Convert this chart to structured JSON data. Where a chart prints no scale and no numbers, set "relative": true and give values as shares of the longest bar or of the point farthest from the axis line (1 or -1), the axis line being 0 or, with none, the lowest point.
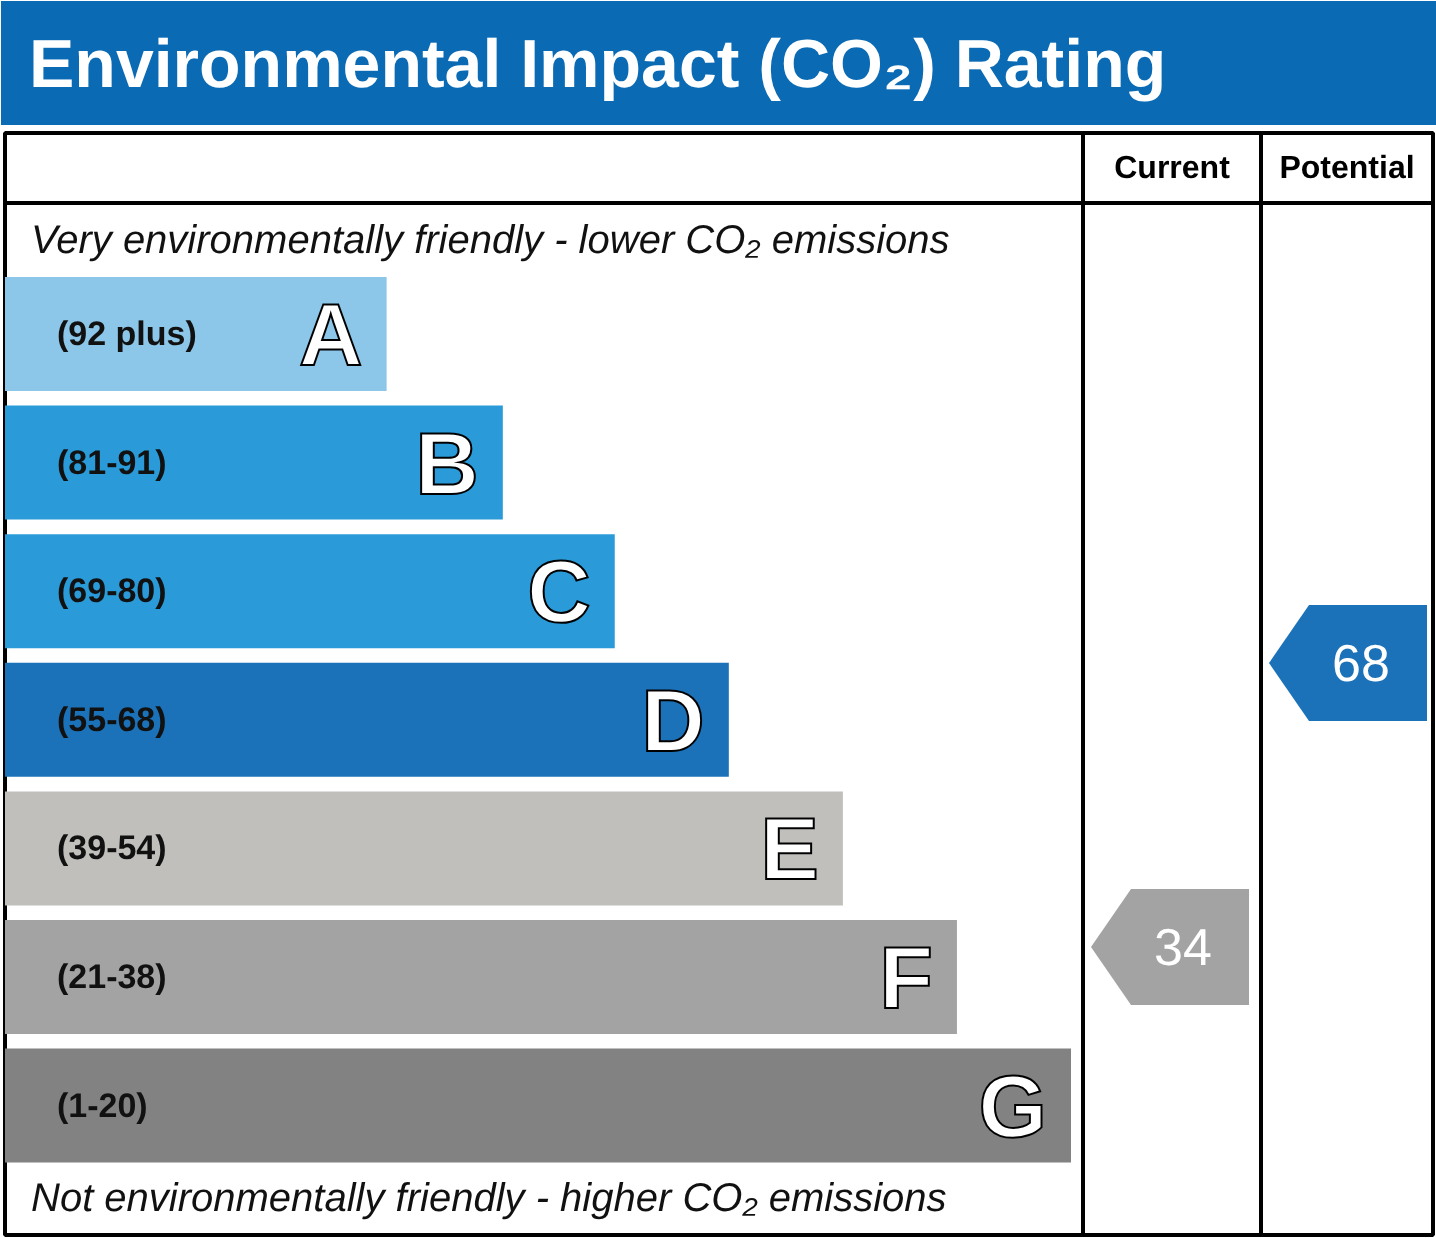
{
  "chart_data": {
    "type": "bar",
    "orientation": "horizontal",
    "relative": true,
    "title": "Environmental Impact (CO₂) Rating",
    "categories": [
      "(92 plus)",
      "(81-91)",
      "(69-80)",
      "(55-68)",
      "(39-54)",
      "(21-38)",
      "(1-20)"
    ],
    "values": [
      0.358,
      0.467,
      0.572,
      0.679,
      0.786,
      0.893,
      1
    ],
    "colors": [
      "#8cc6e8",
      "#2a9bd8",
      "#2a9bd8",
      "#1b72b9",
      "#c0bfbc",
      "#a3a3a3",
      "#828282"
    ],
    "annotations": [
      "Very environmentally friendly - lower CO₂ emissions",
      "Not environmentally friendly - higher CO₂ emissions",
      "Current",
      "Potential",
      {
        "text": "A",
        "y": "(92 plus)"
      },
      {
        "text": "B",
        "y": "(81-91)"
      },
      {
        "text": "C",
        "y": "(69-80)"
      },
      {
        "text": "D",
        "y": "(55-68)"
      },
      {
        "text": "E",
        "y": "(39-54)"
      },
      {
        "text": "F",
        "y": "(21-38)"
      },
      {
        "text": "G",
        "y": "(1-20)"
      },
      "34",
      "68"
    ]
  }
}
